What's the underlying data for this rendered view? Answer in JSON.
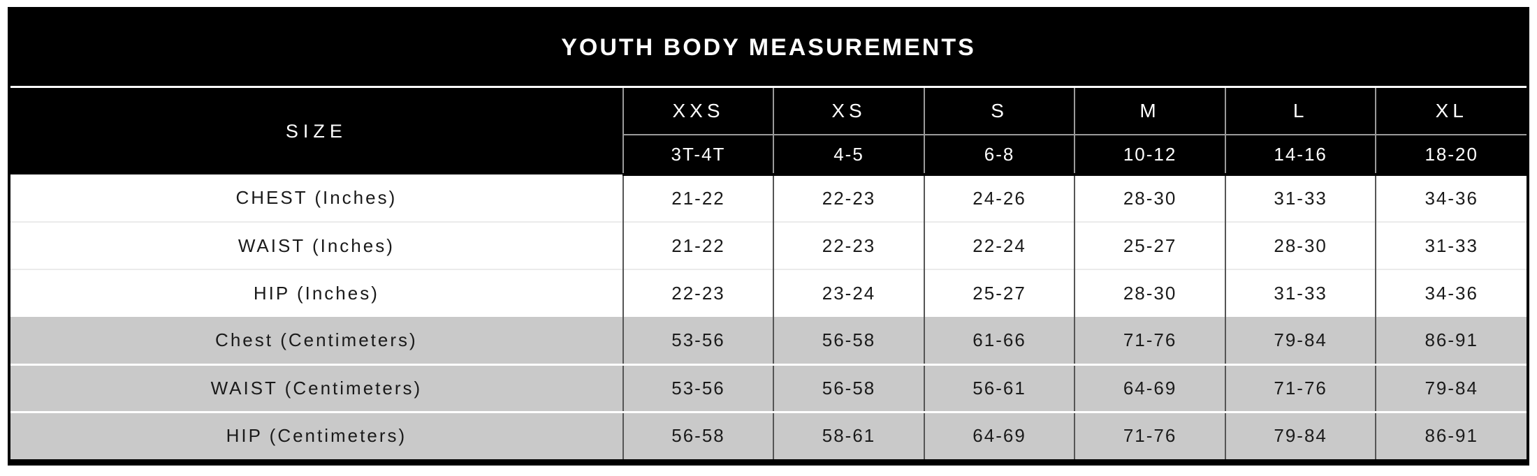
{
  "chart_data": {
    "type": "table",
    "title": "YOUTH BODY MEASUREMENTS",
    "size_header": "SIZE",
    "size_columns": [
      {
        "label": "XXS",
        "ages": "3T-4T"
      },
      {
        "label": "XS",
        "ages": "4-5"
      },
      {
        "label": "S",
        "ages": "6-8"
      },
      {
        "label": "M",
        "ages": "10-12"
      },
      {
        "label": "L",
        "ages": "14-16"
      },
      {
        "label": "XL",
        "ages": "18-20"
      }
    ],
    "measurement_rows": [
      {
        "label": "CHEST (Inches)",
        "shaded": false,
        "values": [
          "21-22",
          "22-23",
          "24-26",
          "28-30",
          "31-33",
          "34-36"
        ]
      },
      {
        "label": "WAIST (Inches)",
        "shaded": false,
        "values": [
          "21-22",
          "22-23",
          "22-24",
          "25-27",
          "28-30",
          "31-33"
        ]
      },
      {
        "label": "HIP (Inches)",
        "shaded": false,
        "values": [
          "22-23",
          "23-24",
          "25-27",
          "28-30",
          "31-33",
          "34-36"
        ]
      },
      {
        "label": "Chest (Centimeters)",
        "shaded": true,
        "values": [
          "53-56",
          "56-58",
          "61-66",
          "71-76",
          "79-84",
          "86-91"
        ]
      },
      {
        "label": "WAIST (Centimeters)",
        "shaded": true,
        "values": [
          "53-56",
          "56-58",
          "56-61",
          "64-69",
          "71-76",
          "79-84"
        ]
      },
      {
        "label": "HIP (Centimeters)",
        "shaded": true,
        "values": [
          "56-58",
          "58-61",
          "64-69",
          "71-76",
          "79-84",
          "86-91"
        ]
      }
    ],
    "layout_hints": {
      "grid": "on",
      "header_tiers": 2,
      "shaded_section": "centimeter rows"
    },
    "colors": {
      "header_bg": "#000000",
      "header_text": "#ffffff",
      "shaded_row_bg": "#c9c9c9",
      "body_text": "#1a1a1a",
      "divider": "#555555",
      "header_divider": "#9a9a9a"
    }
  }
}
